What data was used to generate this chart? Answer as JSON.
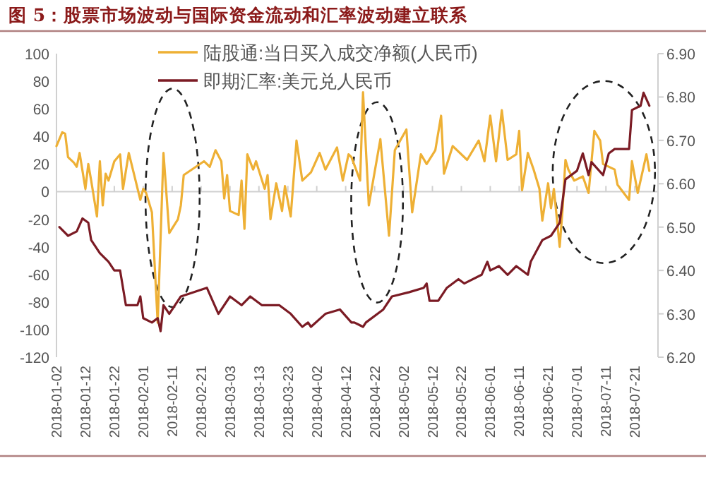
{
  "chart_data": {
    "type": "line",
    "title": "图 5：股票市场波动与国际资金流动和汇率波动建立联系",
    "legend": "top",
    "xlim": [
      "2018-01-02",
      "2018-07-29"
    ],
    "xticks": [
      "2018-01-02",
      "2018-01-12",
      "2018-01-22",
      "2018-02-01",
      "2018-02-11",
      "2018-02-21",
      "2018-03-03",
      "2018-03-13",
      "2018-03-23",
      "2018-04-02",
      "2018-04-12",
      "2018-04-22",
      "2018-05-02",
      "2018-05-12",
      "2018-05-22",
      "2018-06-01",
      "2018-06-11",
      "2018-06-21",
      "2018-07-01",
      "2018-07-11",
      "2018-07-21"
    ],
    "ylim": [
      -120,
      100
    ],
    "yticks": [
      -120,
      -100,
      -80,
      -60,
      -40,
      -20,
      0,
      20,
      40,
      60,
      80,
      100
    ],
    "y2lim": [
      6.2,
      6.9
    ],
    "y2ticks": [
      {
        "value": 6.2,
        "label": "6.20"
      },
      {
        "value": 6.3,
        "label": "6.30"
      },
      {
        "value": 6.4,
        "label": "6.40"
      },
      {
        "value": 6.5,
        "label": "6.50"
      },
      {
        "value": 6.6,
        "label": "6.60"
      },
      {
        "value": 6.7,
        "label": "6.70"
      },
      {
        "value": 6.8,
        "label": "6.80"
      },
      {
        "value": 6.9,
        "label": "6.90"
      }
    ],
    "series": [
      {
        "name": "陆股通:当日买入成交净额(人民币)",
        "color": "#eeb035",
        "x": [
          "2018-01-02",
          "2018-01-04",
          "2018-01-05",
          "2018-01-06",
          "2018-01-08",
          "2018-01-09",
          "2018-01-10",
          "2018-01-12",
          "2018-01-13",
          "2018-01-14",
          "2018-01-16",
          "2018-01-17",
          "2018-01-18",
          "2018-01-19",
          "2018-01-20",
          "2018-01-22",
          "2018-01-24",
          "2018-01-25",
          "2018-01-27",
          "2018-01-29",
          "2018-01-31",
          "2018-02-01",
          "2018-02-02",
          "2018-02-04",
          "2018-02-06",
          "2018-02-08",
          "2018-02-10",
          "2018-02-13",
          "2018-02-14",
          "2018-02-15",
          "2018-02-22",
          "2018-02-24",
          "2018-02-26",
          "2018-02-28",
          "2018-03-01",
          "2018-03-02",
          "2018-03-03",
          "2018-03-06",
          "2018-03-07",
          "2018-03-08",
          "2018-03-09",
          "2018-03-11",
          "2018-03-12",
          "2018-03-15",
          "2018-03-16",
          "2018-03-17",
          "2018-03-19",
          "2018-03-21",
          "2018-03-22",
          "2018-03-24",
          "2018-03-26",
          "2018-03-28",
          "2018-03-31",
          "2018-04-03",
          "2018-04-05",
          "2018-04-09",
          "2018-04-11",
          "2018-04-13",
          "2018-04-14",
          "2018-04-17",
          "2018-04-18",
          "2018-04-20",
          "2018-04-24",
          "2018-04-27",
          "2018-04-29",
          "2018-05-03",
          "2018-05-05",
          "2018-05-08",
          "2018-05-10",
          "2018-05-13",
          "2018-05-15",
          "2018-05-16",
          "2018-05-19",
          "2018-05-24",
          "2018-05-28",
          "2018-05-30",
          "2018-06-01",
          "2018-06-03",
          "2018-06-05",
          "2018-06-07",
          "2018-06-10",
          "2018-06-11",
          "2018-06-12",
          "2018-06-14",
          "2018-06-16",
          "2018-06-18",
          "2018-06-19",
          "2018-06-21",
          "2018-06-22",
          "2018-06-23",
          "2018-06-25",
          "2018-06-26",
          "2018-06-27",
          "2018-06-28",
          "2018-06-30",
          "2018-07-03",
          "2018-07-05",
          "2018-07-07",
          "2018-07-09",
          "2018-07-10",
          "2018-07-14",
          "2018-07-15",
          "2018-07-19",
          "2018-07-20",
          "2018-07-22",
          "2018-07-25",
          "2018-07-26"
        ],
        "values": [
          33,
          43,
          42,
          25,
          21,
          18,
          28,
          2,
          20,
          8,
          -18,
          22,
          -10,
          13,
          8,
          22,
          27,
          2,
          28,
          11,
          -6,
          2,
          -1,
          -15,
          -95,
          28,
          -30,
          -20,
          -10,
          12,
          22,
          18,
          30,
          22,
          -5,
          12,
          -14,
          -17,
          8,
          -27,
          27,
          16,
          22,
          2,
          12,
          -20,
          6,
          -14,
          4,
          -18,
          37,
          8,
          14,
          28,
          16,
          32,
          8,
          27,
          25,
          8,
          72,
          -10,
          38,
          -32,
          30,
          45,
          -15,
          27,
          20,
          30,
          55,
          13,
          33,
          23,
          37,
          22,
          55,
          22,
          59,
          23,
          27,
          44,
          1,
          28,
          16,
          2,
          -21,
          6,
          -12,
          2,
          -40,
          -13,
          23,
          16,
          8,
          11,
          -1,
          44,
          37,
          20,
          16,
          5,
          -6,
          22,
          -1,
          27,
          15
        ]
      },
      {
        "name": "即期汇率:美元兑人民币",
        "color": "#7b1b24",
        "axis": "y2",
        "x": [
          "2018-01-03",
          "2018-01-06",
          "2018-01-09",
          "2018-01-11",
          "2018-01-13",
          "2018-01-14",
          "2018-01-17",
          "2018-01-20",
          "2018-01-22",
          "2018-01-24",
          "2018-01-26",
          "2018-01-30",
          "2018-01-31",
          "2018-02-01",
          "2018-02-04",
          "2018-02-06",
          "2018-02-07",
          "2018-02-08",
          "2018-02-10",
          "2018-02-14",
          "2018-02-23",
          "2018-02-27",
          "2018-03-03",
          "2018-03-07",
          "2018-03-10",
          "2018-03-14",
          "2018-03-20",
          "2018-03-24",
          "2018-03-28",
          "2018-03-30",
          "2018-03-31",
          "2018-04-05",
          "2018-04-10",
          "2018-04-14",
          "2018-04-15",
          "2018-04-18",
          "2018-04-19",
          "2018-04-25",
          "2018-04-28",
          "2018-05-04",
          "2018-05-09",
          "2018-05-10",
          "2018-05-11",
          "2018-05-14",
          "2018-05-17",
          "2018-05-21",
          "2018-05-23",
          "2018-05-29",
          "2018-05-31",
          "2018-06-01",
          "2018-06-04",
          "2018-06-07",
          "2018-06-10",
          "2018-06-14",
          "2018-06-15",
          "2018-06-19",
          "2018-06-22",
          "2018-06-25",
          "2018-06-27",
          "2018-07-01",
          "2018-07-03",
          "2018-07-05",
          "2018-07-06",
          "2018-07-10",
          "2018-07-12",
          "2018-07-14",
          "2018-07-19",
          "2018-07-20",
          "2018-07-23",
          "2018-07-24",
          "2018-07-26"
        ],
        "values": [
          6.5,
          6.48,
          6.49,
          6.52,
          6.51,
          6.47,
          6.44,
          6.42,
          6.4,
          6.4,
          6.32,
          6.32,
          6.34,
          6.29,
          6.28,
          6.29,
          6.26,
          6.32,
          6.3,
          6.34,
          6.36,
          6.3,
          6.34,
          6.32,
          6.34,
          6.32,
          6.32,
          6.3,
          6.27,
          6.28,
          6.27,
          6.3,
          6.31,
          6.28,
          6.28,
          6.27,
          6.28,
          6.31,
          6.34,
          6.35,
          6.36,
          6.37,
          6.33,
          6.33,
          6.36,
          6.38,
          6.37,
          6.39,
          6.42,
          6.4,
          6.41,
          6.39,
          6.41,
          6.39,
          6.42,
          6.47,
          6.48,
          6.51,
          6.61,
          6.63,
          6.67,
          6.62,
          6.65,
          6.62,
          6.67,
          6.68,
          6.68,
          6.77,
          6.78,
          6.81,
          6.78
        ]
      }
    ]
  }
}
